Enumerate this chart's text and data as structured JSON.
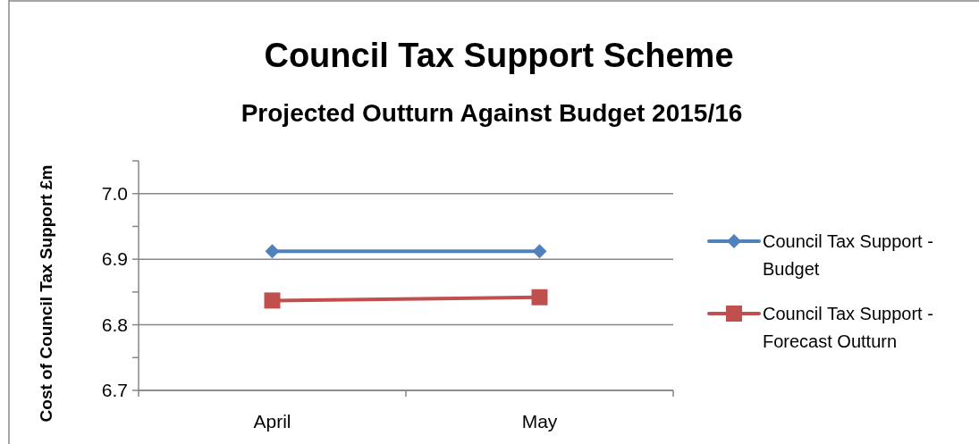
{
  "chart_data": {
    "type": "line",
    "title": "Council Tax Support Scheme",
    "subtitle": "Projected Outturn Against Budget 2015/16",
    "ylabel": "Cost of Council Tax Support £m",
    "categories": [
      "April",
      "May"
    ],
    "series": [
      {
        "name": "Council Tax Support - Budget",
        "color": "#4f81bd",
        "marker": "diamond",
        "values": [
          6.912,
          6.912
        ]
      },
      {
        "name": "Council Tax Support - Forecast Outturn",
        "color": "#c0504d",
        "marker": "square",
        "values": [
          6.837,
          6.842
        ]
      }
    ],
    "ylim": [
      6.7,
      7.05
    ],
    "yticks": [
      6.7,
      {
        "value": 6.75,
        "label": null
      },
      6.8,
      {
        "value": 6.85,
        "label": null
      },
      6.9,
      {
        "value": 6.95,
        "label": null
      },
      {
        "value": 7,
        "label": "7.0"
      },
      {
        "value": 7.05,
        "label": null
      }
    ],
    "grid": "y",
    "legend": "right"
  }
}
